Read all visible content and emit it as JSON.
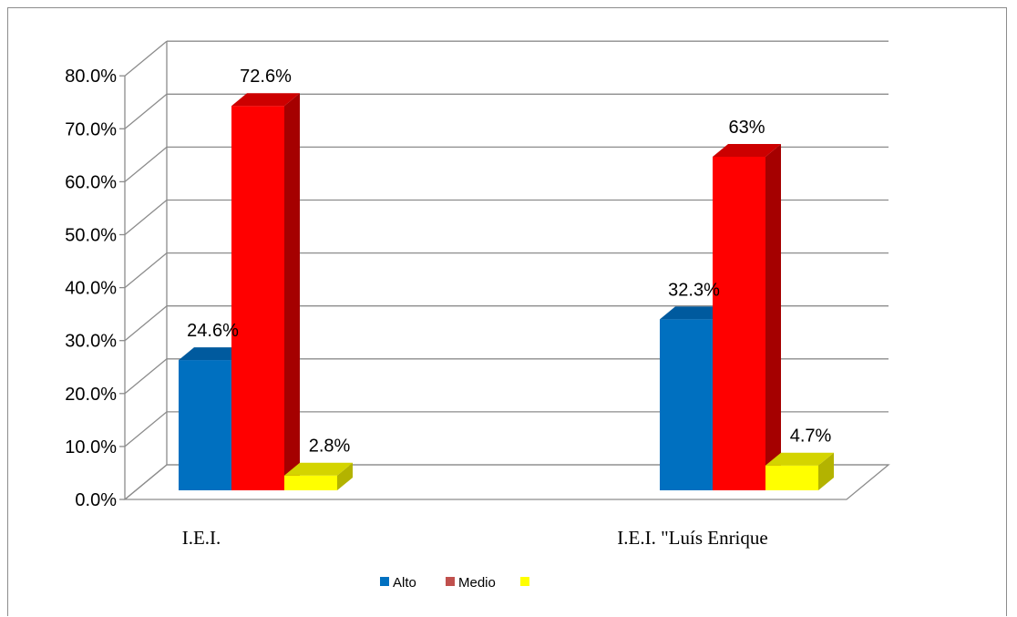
{
  "chart_data": {
    "type": "bar",
    "variant": "3d-clustered-column",
    "categories": [
      "I.E.I.",
      "I.E.I. \"Luís Enrique"
    ],
    "series": [
      {
        "name": "Alto",
        "values": [
          24.6,
          32.3
        ],
        "labels": [
          "24.6%",
          "32.3%"
        ],
        "color": "#0070C0",
        "side": "#0059A0",
        "top": "#005A9E"
      },
      {
        "name": "Medio",
        "values": [
          72.6,
          63.0
        ],
        "labels": [
          "72.6%",
          "63%"
        ],
        "color": "#FF0000",
        "side": "#A50000",
        "top": "#CC0000"
      },
      {
        "name": "",
        "values": [
          2.8,
          4.7
        ],
        "labels": [
          "2.8%",
          "4.7%"
        ],
        "color": "#FFFF00",
        "side": "#B3B300",
        "top": "#D4D400"
      }
    ],
    "y_ticks": [
      "0.0%",
      "10.0%",
      "20.0%",
      "30.0%",
      "40.0%",
      "50.0%",
      "60.0%",
      "70.0%",
      "80.0%"
    ],
    "ylim": [
      0,
      80
    ],
    "grid": true,
    "legend_position": "bottom",
    "legend_swatches": {
      "Alto": "#0070C0",
      "Medio": "#C0504D",
      "third": "#FFFF00"
    }
  }
}
